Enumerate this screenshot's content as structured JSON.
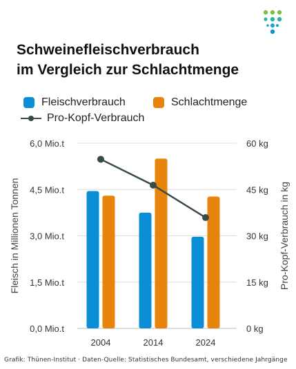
{
  "title": {
    "line1": "Schweinefleischverbrauch",
    "line2": "im Vergleich zur Schlachtmenge"
  },
  "legend": {
    "series1": "Fleischverbrauch",
    "series2": "Schlachtmenge",
    "line": "Pro-Kopf-Verbrauch"
  },
  "colors": {
    "fleischverbrauch": "#0a8fd6",
    "schlachtmenge": "#e8830b",
    "line": "#374a4a",
    "grid": "#dcdcdc"
  },
  "source": "Grafik: Thünen-Institut · Daten-Quelle: Statistisches Bundesamt, verschiedene Jahrgänge",
  "chart_data": {
    "type": "bar",
    "categories": [
      "2004",
      "2014",
      "2024"
    ],
    "series": [
      {
        "name": "Fleischverbrauch",
        "values": [
          4.45,
          3.75,
          2.97
        ],
        "axis": "left"
      },
      {
        "name": "Schlachtmenge",
        "values": [
          4.3,
          5.5,
          4.27
        ],
        "axis": "left"
      },
      {
        "name": "Pro-Kopf-Verbrauch",
        "type": "line",
        "values": [
          54.8,
          46.4,
          35.9
        ],
        "axis": "right"
      }
    ],
    "ylabel": "Fleisch in Millionen Tonnen",
    "y2label": "Pro-Kopf-Verbrauch in kg",
    "ylim": [
      0,
      6
    ],
    "y2lim": [
      0,
      60
    ],
    "yticks": [
      "0,0 Mio.t",
      "1,5 Mio.t",
      "3,0 Mio.t",
      "4,5 Mio.t",
      "6,0 Mio.t"
    ],
    "y2ticks": [
      "0 kg",
      "15 kg",
      "30 kg",
      "45 kg",
      "60 kg"
    ],
    "grid": true,
    "legend": "top"
  }
}
